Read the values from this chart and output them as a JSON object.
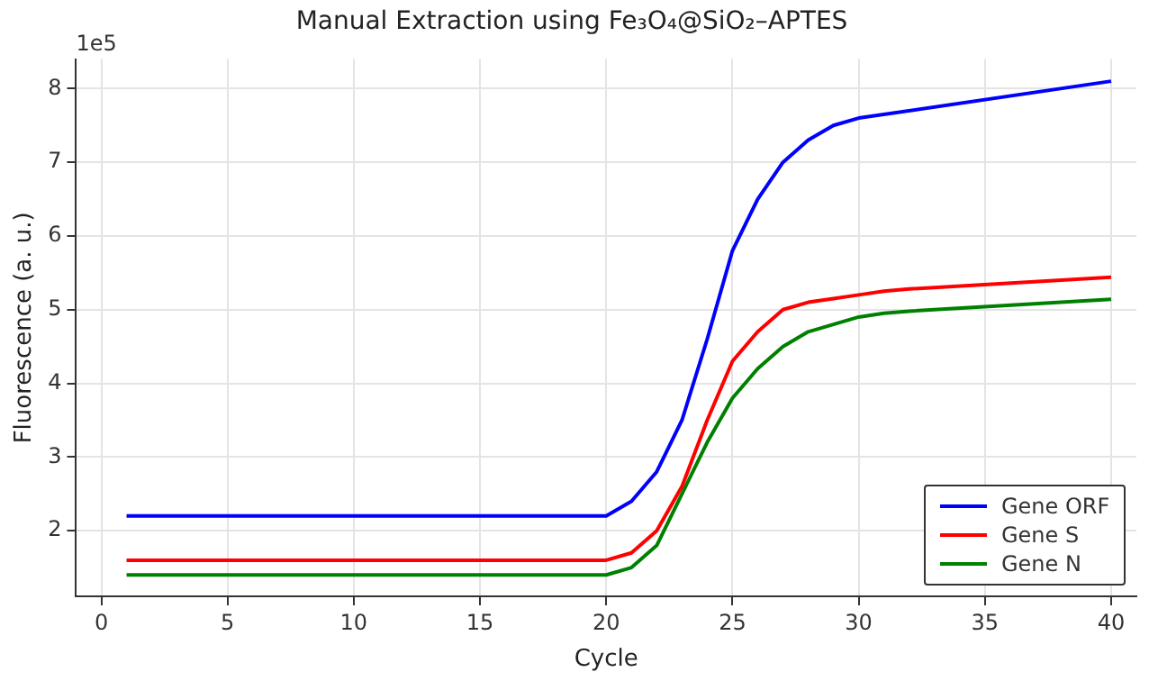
{
  "chart_data": {
    "type": "line",
    "title": "Manual Extraction using Fe₃O₄@SiO₂–APTES",
    "xlabel": "Cycle",
    "ylabel": "Fluorescence (a. u.)",
    "annotations": [
      "1e5"
    ],
    "series": [
      {
        "name": "Gene ORF",
        "color": "#0000ff",
        "x": [
          1,
          20,
          21,
          22,
          23,
          24,
          25,
          26,
          27,
          28,
          29,
          30,
          40
        ],
        "values": [
          2.2,
          2.2,
          2.4,
          2.8,
          3.5,
          4.6,
          5.8,
          6.5,
          7.0,
          7.3,
          7.5,
          7.6,
          8.1
        ]
      },
      {
        "name": "Gene S",
        "color": "#ff0000",
        "x": [
          1,
          20,
          21,
          22,
          23,
          24,
          25,
          26,
          27,
          28,
          29,
          30,
          31,
          32,
          40
        ],
        "values": [
          1.6,
          1.6,
          1.7,
          2.0,
          2.6,
          3.5,
          4.3,
          4.7,
          5.0,
          5.1,
          5.15,
          5.2,
          5.25,
          5.28,
          5.44
        ]
      },
      {
        "name": "Gene N",
        "color": "#008000",
        "x": [
          1,
          20,
          21,
          22,
          23,
          24,
          25,
          26,
          27,
          28,
          29,
          30,
          31,
          32,
          40
        ],
        "values": [
          1.4,
          1.4,
          1.5,
          1.8,
          2.5,
          3.2,
          3.8,
          4.2,
          4.5,
          4.7,
          4.8,
          4.9,
          4.95,
          4.98,
          5.14
        ]
      }
    ],
    "xlim": [
      -1,
      41
    ],
    "xticks": [
      0,
      5,
      10,
      15,
      20,
      25,
      30,
      35,
      40
    ],
    "ylim": [
      1.11,
      8.4
    ],
    "yticks": [
      2,
      3,
      4,
      5,
      6,
      7,
      8
    ],
    "grid": true,
    "legend": "bottom right",
    "line_style": "solid",
    "marker": "none"
  }
}
